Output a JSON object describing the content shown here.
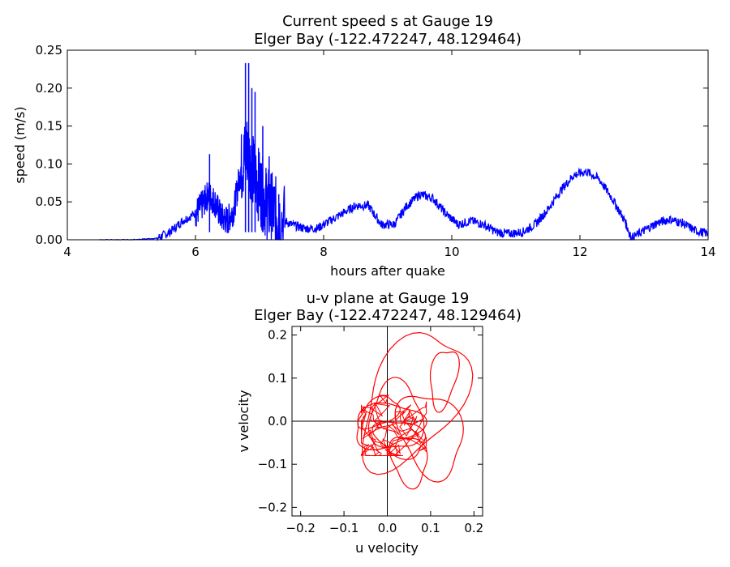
{
  "chart_data": [
    {
      "type": "line",
      "title_line1": "Current speed s at Gauge 19",
      "title_line2": "Elger Bay  (-122.472247, 48.129464)",
      "xlabel": "hours after quake",
      "ylabel": "speed (m/s)",
      "xlim": [
        4,
        14
      ],
      "ylim": [
        0,
        0.25
      ],
      "xticks": [
        4,
        6,
        8,
        10,
        12,
        14
      ],
      "yticks": [
        "0.00",
        "0.05",
        "0.10",
        "0.15",
        "0.20",
        "0.25"
      ],
      "grid": false,
      "series_color": "#0000ff",
      "series": [
        {
          "x": [
            4.5,
            5.0,
            5.4,
            5.6,
            5.8,
            6.0,
            6.1,
            6.2,
            6.3,
            6.4,
            6.5,
            6.6,
            6.7,
            6.8,
            6.9,
            7.0,
            7.1,
            7.2,
            7.3,
            7.5,
            7.7,
            7.9,
            8.1,
            8.3,
            8.5,
            8.7,
            8.9,
            9.1,
            9.3,
            9.5,
            9.7,
            9.9,
            10.1,
            10.3,
            10.5,
            10.7,
            10.9,
            11.1,
            11.3,
            11.5,
            11.7,
            11.9,
            12.1,
            12.3,
            12.5,
            12.7,
            12.8,
            13.0,
            13.2,
            13.4,
            13.6,
            13.8,
            14.0
          ],
          "y": [
            0.0,
            0.0,
            0.002,
            0.01,
            0.025,
            0.035,
            0.045,
            0.06,
            0.05,
            0.03,
            0.025,
            0.04,
            0.09,
            0.12,
            0.09,
            0.07,
            0.05,
            0.04,
            0.03,
            0.02,
            0.015,
            0.015,
            0.025,
            0.035,
            0.045,
            0.045,
            0.02,
            0.02,
            0.045,
            0.06,
            0.055,
            0.035,
            0.02,
            0.025,
            0.02,
            0.01,
            0.008,
            0.01,
            0.02,
            0.04,
            0.065,
            0.085,
            0.09,
            0.08,
            0.055,
            0.025,
            0.002,
            0.012,
            0.022,
            0.027,
            0.022,
            0.012,
            0.008
          ]
        }
      ],
      "spikes": [
        {
          "x": 6.22,
          "y": 0.113
        },
        {
          "x": 6.78,
          "y": 0.233
        },
        {
          "x": 6.83,
          "y": 0.233
        },
        {
          "x": 6.88,
          "y": 0.2
        },
        {
          "x": 6.93,
          "y": 0.195
        },
        {
          "x": 7.05,
          "y": 0.15
        },
        {
          "x": 7.15,
          "y": 0.11
        },
        {
          "x": 7.3,
          "y": 0.06
        }
      ]
    },
    {
      "type": "line",
      "title_line1": "u-v plane at Gauge 19",
      "title_line2": "Elger Bay  (-122.472247, 48.129464)",
      "xlabel": "u velocity",
      "ylabel": "v velocity",
      "xlim": [
        -0.22,
        0.22
      ],
      "ylim": [
        -0.22,
        0.22
      ],
      "xticks": [
        "−0.2",
        "−0.1",
        "0.0",
        "0.1",
        "0.2"
      ],
      "yticks": [
        "−0.2",
        "−0.1",
        "0.0",
        "0.1",
        "0.2"
      ],
      "grid": false,
      "series_color": "#ff0000",
      "loops": [
        {
          "cx": 0.06,
          "cy": 0.05,
          "rx": 0.1,
          "ry": 0.17,
          "rot": -30
        },
        {
          "cx": 0.1,
          "cy": -0.03,
          "rx": 0.07,
          "ry": 0.1,
          "rot": 20
        },
        {
          "cx": 0.0,
          "cy": -0.01,
          "rx": 0.08,
          "ry": 0.05,
          "rot": 10
        },
        {
          "cx": 0.02,
          "cy": 0.01,
          "rx": 0.06,
          "ry": 0.08,
          "rot": 0
        },
        {
          "cx": -0.02,
          "cy": 0.02,
          "rx": 0.05,
          "ry": 0.03,
          "rot": 30
        },
        {
          "cx": 0.03,
          "cy": -0.04,
          "rx": 0.06,
          "ry": 0.04,
          "rot": -20
        },
        {
          "cx": 0.13,
          "cy": 0.1,
          "rx": 0.03,
          "ry": 0.07,
          "rot": -10
        },
        {
          "cx": 0.05,
          "cy": -0.09,
          "rx": 0.04,
          "ry": 0.06,
          "rot": 15
        }
      ]
    }
  ]
}
